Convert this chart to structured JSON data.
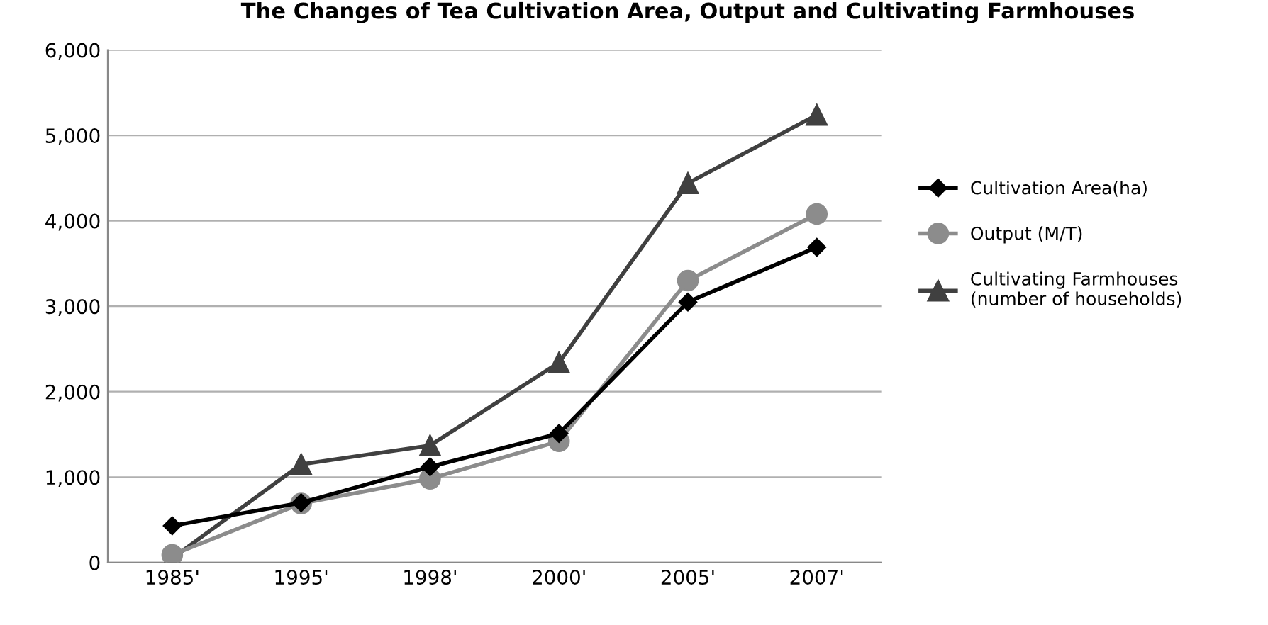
{
  "chart_data": {
    "type": "line",
    "title": "The Changes of Tea Cultivation Area, Output and Cultivating Farmhouses",
    "categories": [
      "1985'",
      "1995'",
      "1998'",
      "2000'",
      "2005'",
      "2007'"
    ],
    "series": [
      {
        "name": "Cultivation Area(ha)",
        "color": "#000000",
        "marker": "diamond",
        "values": [
          430,
          700,
          1120,
          1510,
          3050,
          3690
        ]
      },
      {
        "name": "Output (M/T)",
        "color": "#8c8c8c",
        "marker": "circle",
        "values": [
          90,
          690,
          980,
          1420,
          3300,
          4080
        ]
      },
      {
        "name": "Cultivating Farmhouses\n(number of households)",
        "color": "#404040",
        "marker": "triangle",
        "values": [
          50,
          1150,
          1370,
          2340,
          4440,
          5240
        ]
      }
    ],
    "ylim": [
      0,
      6000
    ],
    "yticks": [
      {
        "value": 0,
        "label": "0"
      },
      {
        "value": 1000,
        "label": "1,000"
      },
      {
        "value": 2000,
        "label": "2,000"
      },
      {
        "value": 3000,
        "label": "3,000"
      },
      {
        "value": 4000,
        "label": "4,000"
      },
      {
        "value": 5000,
        "label": "5,000"
      },
      {
        "value": 6000,
        "label": "6,000"
      }
    ],
    "grid": "y",
    "legend": "right",
    "line_style": "solid"
  }
}
